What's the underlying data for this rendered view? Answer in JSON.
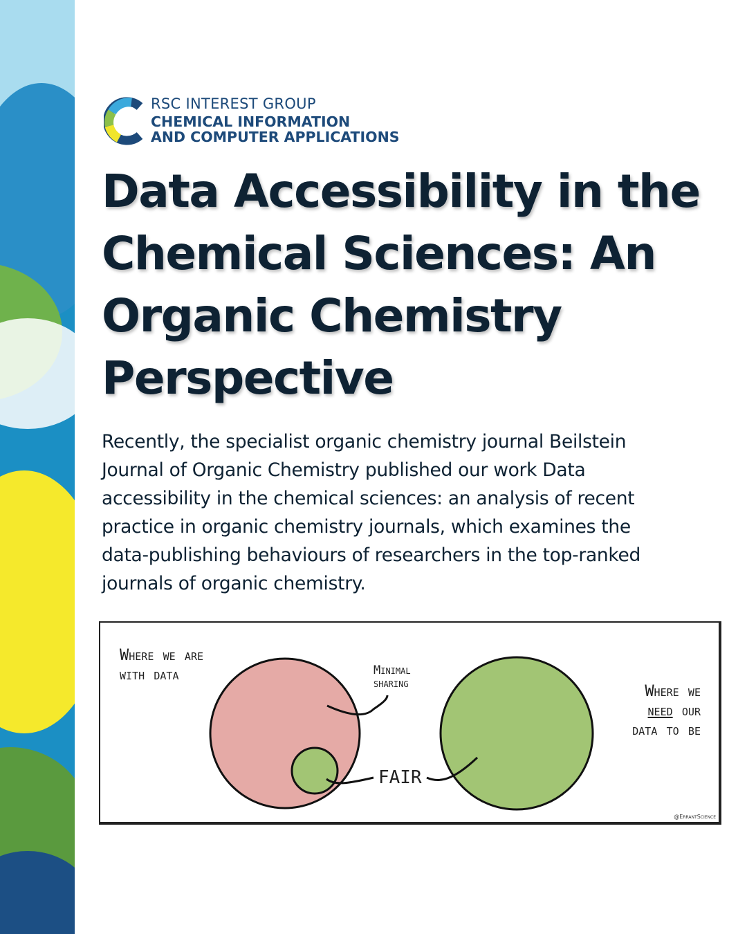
{
  "logo": {
    "line1": "RSC INTEREST GROUP",
    "line2": "CHEMICAL INFORMATION",
    "line3": "AND COMPUTER APPLICATIONS"
  },
  "title_lines": [
    "Data Accessibility in the",
    "Chemical Sciences: An",
    "Organic Chemistry",
    "Perspective"
  ],
  "body_lines": [
    "Recently, the specialist organic chemistry journal Beilstein",
    "Journal of Organic Chemistry published our work Data",
    "accessibility in the chemical sciences: an analysis of recent",
    "practice in organic chemistry journals, which examines the",
    "data-publishing behaviours of researchers in the top-ranked",
    "journals of organic chemistry."
  ],
  "comic": {
    "left_label": [
      "Where we are",
      "with data"
    ],
    "minimal_label": [
      "Minimal",
      "sharing"
    ],
    "fair_label": "FAIR",
    "right_label": [
      "Where we",
      "need",
      " our",
      "data to be"
    ],
    "credit": "@ErrantScience",
    "colors": {
      "pink": "#e5aaa6",
      "green": "#a2c574"
    }
  }
}
